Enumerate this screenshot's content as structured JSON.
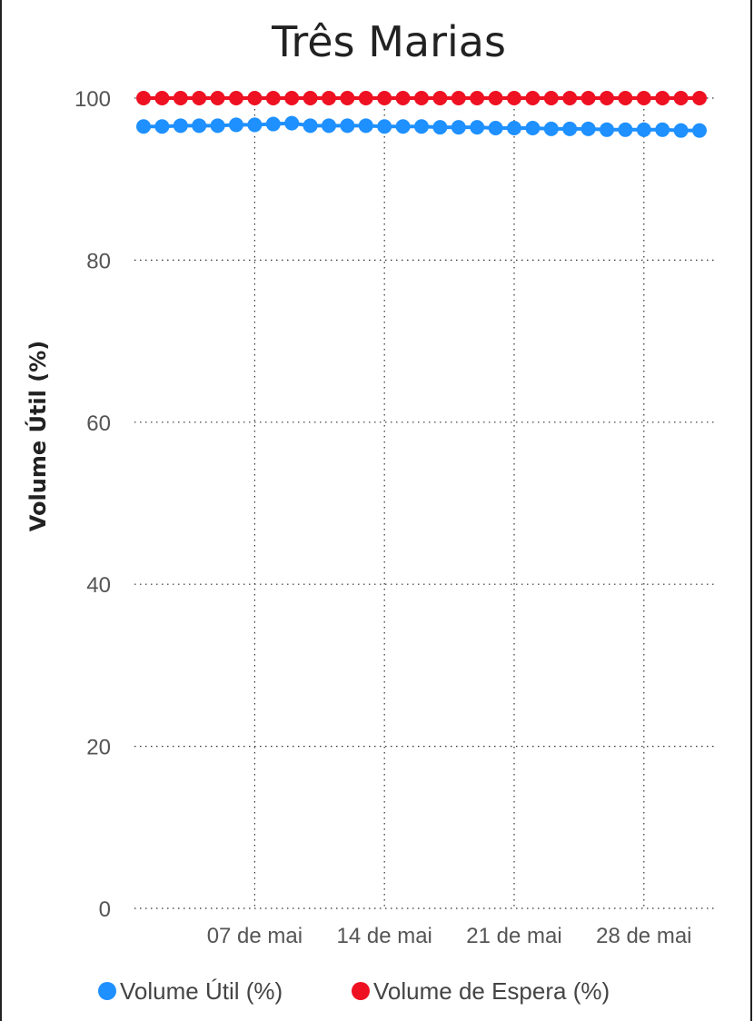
{
  "chart_data": {
    "type": "line",
    "title": "Três Marias",
    "ylabel": "Volume Útil (%)",
    "xlabel": "",
    "ylim": [
      0,
      100
    ],
    "y_ticks": [
      "0",
      "20",
      "40",
      "60",
      "80",
      "100"
    ],
    "x_ticks": [
      "07 de mai",
      "14 de mai",
      "21 de mai",
      "28 de mai"
    ],
    "grid": true,
    "legend_position": "bottom",
    "x": [
      "2023-05-01",
      "2023-05-02",
      "2023-05-03",
      "2023-05-04",
      "2023-05-05",
      "2023-05-06",
      "2023-05-07",
      "2023-05-08",
      "2023-05-09",
      "2023-05-10",
      "2023-05-11",
      "2023-05-12",
      "2023-05-13",
      "2023-05-14",
      "2023-05-15",
      "2023-05-16",
      "2023-05-17",
      "2023-05-18",
      "2023-05-19",
      "2023-05-20",
      "2023-05-21",
      "2023-05-22",
      "2023-05-23",
      "2023-05-24",
      "2023-05-25",
      "2023-05-26",
      "2023-05-27",
      "2023-05-28",
      "2023-05-29",
      "2023-05-30",
      "2023-05-31"
    ],
    "series": [
      {
        "name": "Volume Útil (%)",
        "color": "#1e90ff",
        "values": [
          96.5,
          96.5,
          96.6,
          96.6,
          96.6,
          96.7,
          96.7,
          96.8,
          96.9,
          96.6,
          96.6,
          96.6,
          96.6,
          96.5,
          96.5,
          96.5,
          96.4,
          96.4,
          96.4,
          96.3,
          96.3,
          96.3,
          96.2,
          96.2,
          96.2,
          96.1,
          96.1,
          96.1,
          96.1,
          96.0,
          96.0
        ]
      },
      {
        "name": "Volume de Espera (%)",
        "color": "#ee1122",
        "values": [
          100,
          100,
          100,
          100,
          100,
          100,
          100,
          100,
          100,
          100,
          100,
          100,
          100,
          100,
          100,
          100,
          100,
          100,
          100,
          100,
          100,
          100,
          100,
          100,
          100,
          100,
          100,
          100,
          100,
          100,
          100
        ]
      }
    ]
  }
}
